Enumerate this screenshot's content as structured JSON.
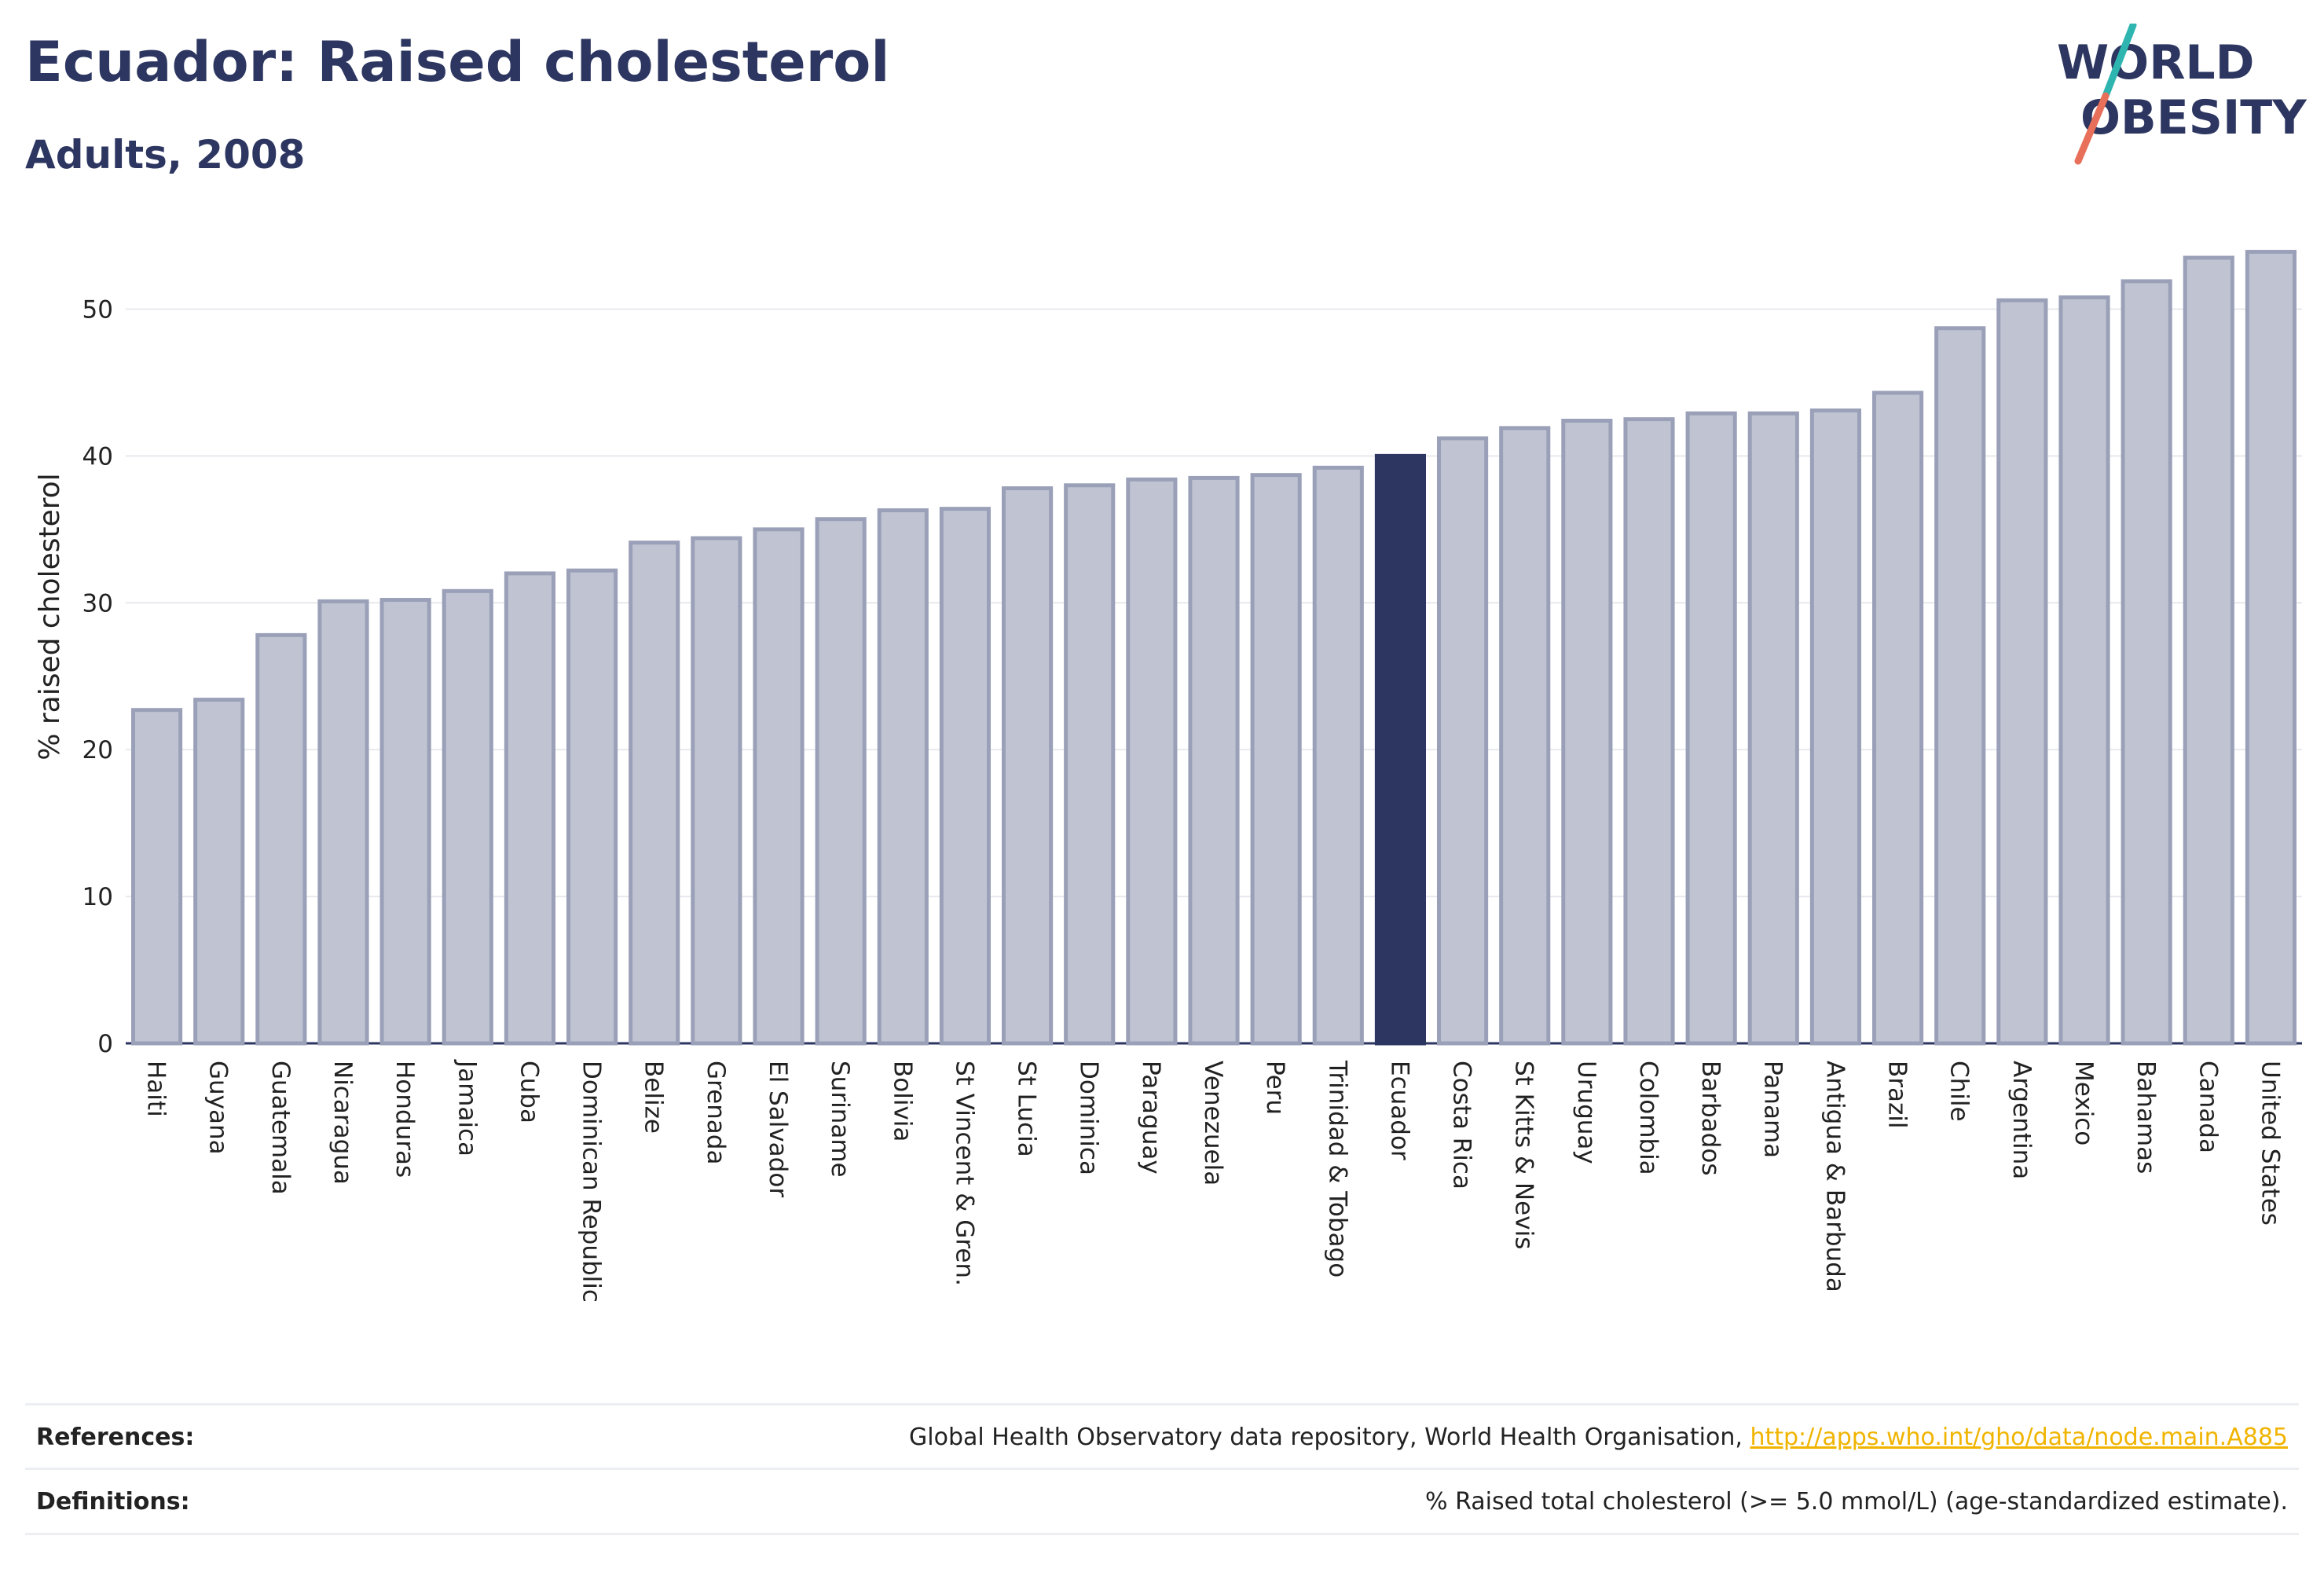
{
  "header": {
    "title": "Ecuador: Raised cholesterol",
    "subtitle": "Adults, 2008"
  },
  "logo": {
    "line1": "WORLD",
    "line2": "OBESITY",
    "colors": {
      "text": "#2c3660",
      "slash_top": "#2fb5b0",
      "slash_bottom": "#e8705a"
    }
  },
  "chart_data": {
    "type": "bar",
    "ylabel": "% raised cholesterol",
    "xlabel": "",
    "ylim": [
      0,
      55
    ],
    "yticks": [
      0,
      10,
      20,
      30,
      40,
      50
    ],
    "grid": true,
    "highlight": "Ecuador",
    "colors": {
      "bar": "#c0c4d2",
      "bar_edge": "#9aa0b8",
      "highlight": "#2c3660",
      "grid": "#e8e9ee"
    },
    "categories": [
      "Haiti",
      "Guyana",
      "Guatemala",
      "Nicaragua",
      "Honduras",
      "Jamaica",
      "Cuba",
      "Dominican Republic",
      "Belize",
      "Grenada",
      "El Salvador",
      "Suriname",
      "Bolivia",
      "St Vincent & Gren.",
      "St Lucia",
      "Dominica",
      "Paraguay",
      "Venezuela",
      "Peru",
      "Trinidad & Tobago",
      "Ecuador",
      "Costa Rica",
      "St Kitts & Nevis",
      "Uruguay",
      "Colombia",
      "Barbados",
      "Panama",
      "Antigua & Barbuda",
      "Brazil",
      "Chile",
      "Argentina",
      "Mexico",
      "Bahamas",
      "Canada",
      "United States"
    ],
    "values": [
      22.7,
      23.4,
      27.8,
      30.1,
      30.2,
      30.8,
      32.0,
      32.2,
      34.1,
      34.4,
      35.0,
      35.7,
      36.3,
      36.4,
      37.8,
      38.0,
      38.4,
      38.5,
      38.7,
      39.2,
      40.0,
      41.2,
      41.9,
      42.4,
      42.5,
      42.9,
      42.9,
      43.1,
      44.3,
      48.7,
      50.6,
      50.8,
      51.9,
      53.5,
      53.9
    ]
  },
  "footer": {
    "references_label": "References:",
    "references_text": "Global Health Observatory data repository, World Health Organisation, ",
    "references_link": "http://apps.who.int/gho/data/node.main.A885",
    "definitions_label": "Definitions:",
    "definitions_text": "% Raised total cholesterol (>= 5.0 mmol/L) (age-standardized estimate)."
  }
}
